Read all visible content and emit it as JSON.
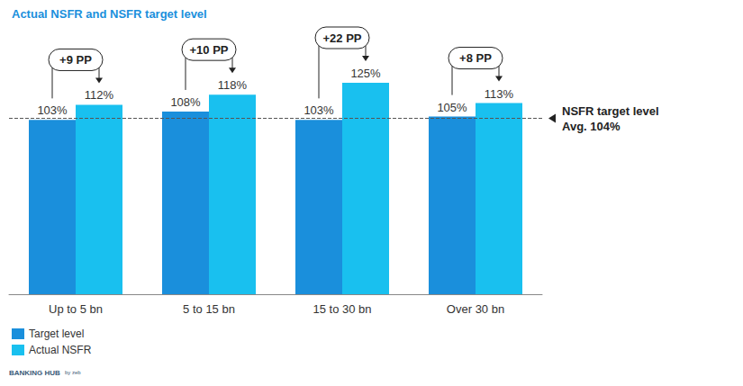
{
  "chart_data": {
    "type": "bar",
    "title": "Actual NSFR and NSFR target level",
    "categories": [
      "Up to 5 bn",
      "5 to 15 bn",
      "15 to 30 bn",
      "Over 30 bn"
    ],
    "series": [
      {
        "name": "Target level",
        "color": "#1a8fdc",
        "values": [
          103,
          108,
          103,
          105
        ],
        "value_labels": [
          "103%",
          "108%",
          "103%",
          "105%"
        ]
      },
      {
        "name": "Actual NSFR",
        "color": "#19c0ef",
        "values": [
          112,
          118,
          125,
          113
        ],
        "value_labels": [
          "112%",
          "118%",
          "125%",
          "113%"
        ]
      }
    ],
    "differences": {
      "values": [
        9,
        10,
        22,
        8
      ],
      "labels": [
        "+9 PP",
        "+10 PP",
        "+22 PP",
        "+8 PP"
      ]
    },
    "reference_line": {
      "value": 104,
      "label": [
        "NSFR target level",
        "Avg. 104%"
      ]
    },
    "ylim": [
      0,
      150
    ],
    "yticks": [
      0,
      50,
      100,
      150
    ],
    "grid": false,
    "tick_labels": "x",
    "data_labels": true,
    "legend": "bottom left",
    "footer": [
      "BANKING HUB",
      "by zeb"
    ]
  }
}
